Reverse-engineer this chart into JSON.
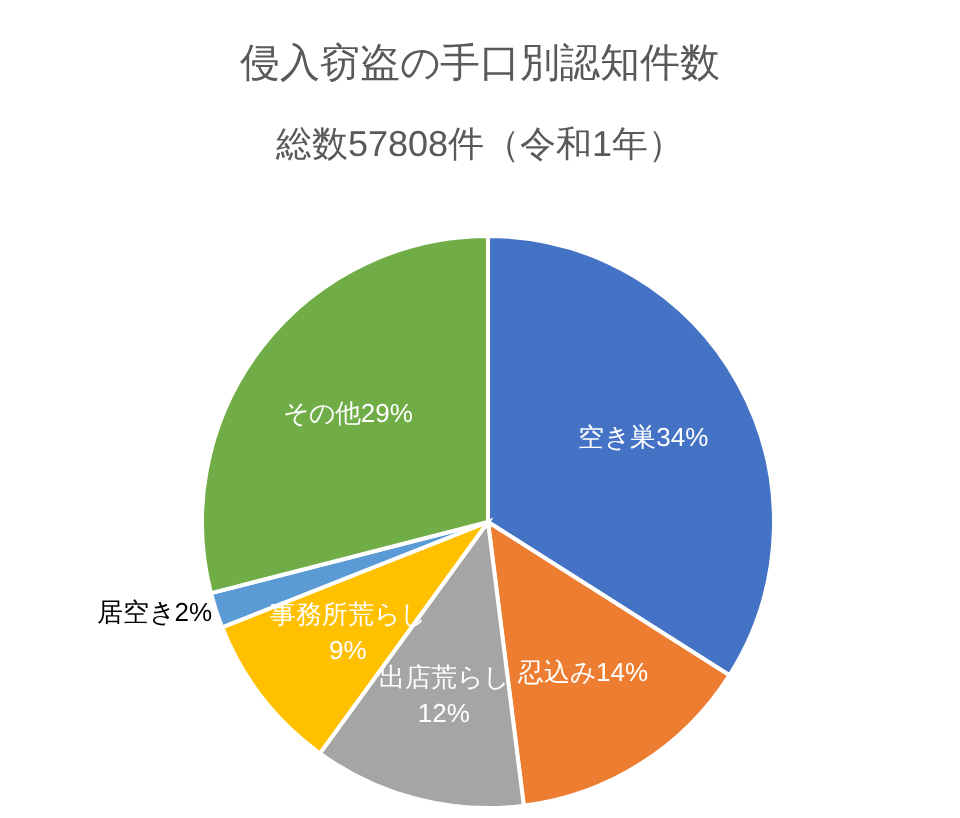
{
  "chart_data": {
    "type": "pie",
    "title": "侵入窃盗の手口別認知件数",
    "subtitle": "総数57808件（令和1年）",
    "categories": [
      "空き巣",
      "忍込み",
      "出店荒らし",
      "事務所荒らし",
      "居空き",
      "その他"
    ],
    "values": [
      34,
      14,
      12,
      9,
      2,
      29
    ],
    "value_labels": [
      "34%",
      "14%",
      "12%",
      "9%",
      "2%",
      "29%"
    ],
    "colors": [
      "#4472c4",
      "#ed7d31",
      "#a5a5a5",
      "#ffc000",
      "#5b9bd5",
      "#70ad47"
    ],
    "legend": false
  }
}
